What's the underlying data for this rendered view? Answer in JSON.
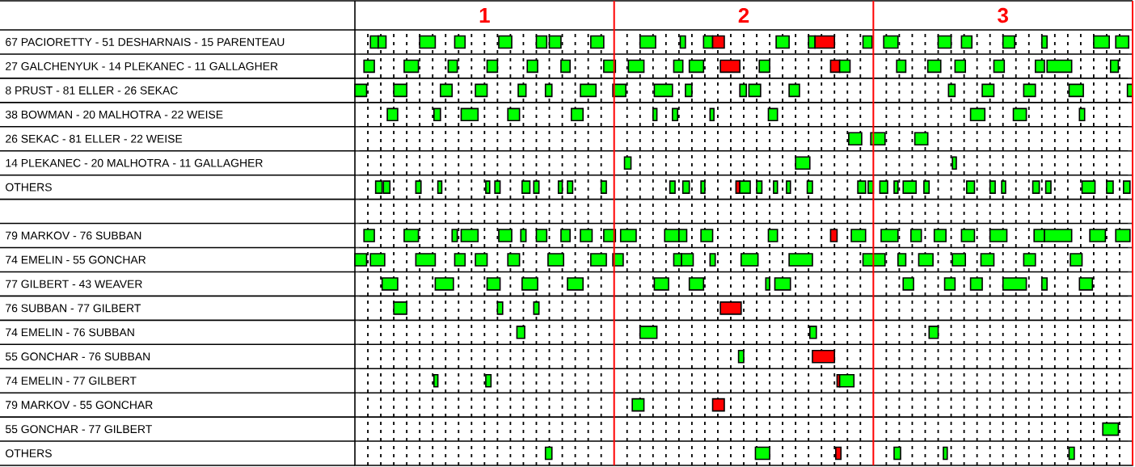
{
  "chart_data": {
    "type": "bar",
    "orientation": "horizontal",
    "grid": true,
    "xlim": [
      0.5,
      3.5
    ],
    "categories": [
      "67 PACIORETTY - 51 DESHARNAIS - 15 PARENTEAU",
      "27 GALCHENYUK - 14 PLEKANEC - 11 GALLAGHER",
      "8 PRUST - 81 ELLER - 26 SEKAC",
      "38 BOWMAN - 20 MALHOTRA - 22 WEISE",
      "26 SEKAC - 81 ELLER - 22 WEISE",
      "14 PLEKANEC - 20 MALHOTRA - 11 GALLAGHER",
      "OTHERS",
      null,
      "79 MARKOV - 76 SUBBAN",
      "74 EMELIN - 55 GONCHAR",
      "77 GILBERT - 43 WEAVER",
      "76 SUBBAN - 77 GILBERT",
      "74 EMELIN - 76 SUBBAN",
      "55 GONCHAR - 76 SUBBAN",
      "74 EMELIN - 77 GILBERT",
      "79 MARKOV - 55 GONCHAR",
      "55 GONCHAR - 77 GILBERT",
      "OTHERS"
    ],
    "xticks": [
      {
        "value": 0.55,
        "label": null
      },
      {
        "value": 0.6,
        "label": null
      },
      {
        "value": 0.65,
        "label": null
      },
      {
        "value": 0.7,
        "label": null
      },
      {
        "value": 0.75,
        "label": null
      },
      {
        "value": 0.8,
        "label": null
      },
      {
        "value": 0.85,
        "label": null
      },
      {
        "value": 0.9,
        "label": null
      },
      {
        "value": 0.95,
        "label": null
      },
      1,
      {
        "value": 1.05,
        "label": null
      },
      {
        "value": 1.1,
        "label": null
      },
      {
        "value": 1.15,
        "label": null
      },
      {
        "value": 1.2,
        "label": null
      },
      {
        "value": 1.25,
        "label": null
      },
      {
        "value": 1.3,
        "label": null
      },
      {
        "value": 1.35,
        "label": null
      },
      {
        "value": 1.4,
        "label": null
      },
      {
        "value": 1.45,
        "label": null
      },
      {
        "value": 1.55,
        "label": null
      },
      {
        "value": 1.6,
        "label": null
      },
      {
        "value": 1.65,
        "label": null
      },
      {
        "value": 1.7,
        "label": null
      },
      {
        "value": 1.75,
        "label": null
      },
      {
        "value": 1.8,
        "label": null
      },
      {
        "value": 1.85,
        "label": null
      },
      {
        "value": 1.9,
        "label": null
      },
      {
        "value": 1.95,
        "label": null
      },
      2,
      {
        "value": 2.05,
        "label": null
      },
      {
        "value": 2.1,
        "label": null
      },
      {
        "value": 2.15,
        "label": null
      },
      {
        "value": 2.2,
        "label": null
      },
      {
        "value": 2.25,
        "label": null
      },
      {
        "value": 2.3,
        "label": null
      },
      {
        "value": 2.35,
        "label": null
      },
      {
        "value": 2.4,
        "label": null
      },
      {
        "value": 2.45,
        "label": null
      },
      {
        "value": 2.55,
        "label": null
      },
      {
        "value": 2.6,
        "label": null
      },
      {
        "value": 2.65,
        "label": null
      },
      {
        "value": 2.7,
        "label": null
      },
      {
        "value": 2.75,
        "label": null
      },
      {
        "value": 2.8,
        "label": null
      },
      {
        "value": 2.85,
        "label": null
      },
      {
        "value": 2.9,
        "label": null
      },
      {
        "value": 2.95,
        "label": null
      },
      3,
      {
        "value": 3.05,
        "label": null
      },
      {
        "value": 3.1,
        "label": null
      },
      {
        "value": 3.15,
        "label": null
      },
      {
        "value": 3.2,
        "label": null
      },
      {
        "value": 3.25,
        "label": null
      },
      {
        "value": 3.3,
        "label": null
      },
      {
        "value": 3.35,
        "label": null
      },
      {
        "value": 3.4,
        "label": null
      },
      {
        "value": 3.45,
        "label": null
      }
    ],
    "ref_lines": [
      {
        "axis": "x",
        "value": 1.5,
        "color": "#ff0000"
      },
      {
        "axis": "x",
        "value": 2.5,
        "color": "#ff0000"
      },
      {
        "axis": "x",
        "value": 3.5,
        "color": "#ff0000"
      }
    ],
    "series": [
      {
        "color": "#00ff00",
        "base": [
          0.56,
          0.535,
          0.5,
          0.625,
          2.405,
          1.54,
          0.58,
          null,
          0.535,
          0.5,
          0.605,
          0.65,
          1.125,
          1.98,
          0.805,
          1.57,
          3.385,
          1.235
        ],
        "values": [
          0.03,
          0.04,
          0.045,
          0.04,
          0.05,
          0.025,
          0.025,
          null,
          0.04,
          0.045,
          0.06,
          0.05,
          0.03,
          0.02,
          0.015,
          0.045,
          0.06,
          0.025
        ]
      },
      {
        "color": "#00ff00",
        "colors": [
          null,
          null,
          null,
          null,
          null,
          null,
          null,
          null,
          null,
          null,
          null,
          null,
          null,
          "#ff0000",
          null,
          "#ff0000",
          null,
          null
        ],
        "base": [
          0.59,
          0.69,
          0.65,
          0.805,
          2.49,
          2.2,
          0.61,
          null,
          0.69,
          0.56,
          0.81,
          1.05,
          1.6,
          2.265,
          1.005,
          1.88,
          null,
          2.045
        ],
        "values": [
          0.03,
          0.055,
          0.05,
          0.025,
          0.055,
          0.055,
          0.025,
          null,
          0.055,
          0.055,
          0.07,
          0.02,
          0.065,
          0.085,
          0.02,
          0.045,
          null,
          0.055
        ]
      },
      {
        "color": "#00ff00",
        "colors": [
          null,
          null,
          null,
          null,
          null,
          null,
          null,
          null,
          null,
          null,
          null,
          null,
          null,
          null,
          "#ff0000",
          null,
          null,
          "#ff0000"
        ],
        "base": [
          0.75,
          0.86,
          0.83,
          0.91,
          2.66,
          2.805,
          0.735,
          null,
          0.875,
          0.735,
          1.01,
          1.19,
          2.255,
          null,
          2.36,
          null,
          null,
          2.355
        ],
        "values": [
          0.06,
          0.035,
          0.045,
          0.065,
          0.05,
          0.015,
          0.02,
          null,
          0.02,
          0.075,
          0.05,
          0.02,
          0.025,
          null,
          0.01,
          null,
          null,
          0.02
        ]
      },
      {
        "color": "#00ff00",
        "colors": [
          null,
          null,
          null,
          null,
          null,
          null,
          null,
          null,
          null,
          null,
          null,
          "#ff0000",
          null,
          null,
          null,
          null,
          null,
          null
        ],
        "base": [
          0.885,
          1.01,
          0.965,
          1.09,
          null,
          null,
          0.82,
          null,
          0.91,
          0.885,
          1.145,
          1.91,
          2.715,
          null,
          2.37,
          null,
          null,
          2.58
        ],
        "values": [
          0.04,
          0.04,
          0.045,
          0.045,
          null,
          null,
          0.015,
          null,
          0.065,
          0.04,
          0.06,
          0.08,
          0.035,
          null,
          0.055,
          null,
          null,
          0.025
        ]
      },
      {
        "color": "#00ff00",
        "base": [
          1.055,
          1.165,
          1.13,
          1.335,
          null,
          null,
          1.005,
          null,
          1.055,
          0.965,
          1.32,
          null,
          null,
          null,
          null,
          null,
          null,
          2.77
        ],
        "values": [
          0.05,
          0.04,
          0.03,
          0.045,
          null,
          null,
          0.015,
          null,
          0.05,
          0.045,
          0.06,
          null,
          null,
          null,
          null,
          null,
          null,
          0.015
        ]
      },
      {
        "color": "#00ff00",
        "base": [
          1.2,
          1.295,
          1.235,
          1.65,
          null,
          null,
          1.04,
          null,
          1.14,
          1.09,
          1.655,
          null,
          null,
          null,
          null,
          null,
          null,
          3.255
        ],
        "values": [
          0.04,
          0.035,
          0.025,
          0.015,
          null,
          null,
          0.02,
          null,
          0.02,
          0.045,
          0.055,
          null,
          null,
          null,
          null,
          null,
          null,
          0.02
        ]
      },
      {
        "color": "#00ff00",
        "base": [
          1.25,
          1.46,
          1.37,
          1.725,
          null,
          null,
          1.145,
          null,
          1.2,
          1.245,
          1.79,
          null,
          null,
          null,
          null,
          null,
          null,
          null
        ],
        "values": [
          0.045,
          0.045,
          0.06,
          0.02,
          null,
          null,
          0.03,
          null,
          0.04,
          0.06,
          0.055,
          null,
          null,
          null,
          null,
          null,
          null,
          null
        ]
      },
      {
        "color": "#00ff00",
        "base": [
          1.41,
          1.555,
          1.495,
          1.87,
          null,
          null,
          1.19,
          null,
          1.295,
          1.41,
          2.085,
          null,
          null,
          null,
          null,
          null,
          null,
          null
        ],
        "values": [
          0.05,
          0.06,
          0.05,
          0.015,
          null,
          null,
          0.02,
          null,
          0.035,
          0.06,
          0.015,
          null,
          null,
          null,
          null,
          null,
          null,
          null
        ]
      },
      {
        "color": "#00ff00",
        "base": [
          1.6,
          1.73,
          1.655,
          2.095,
          null,
          null,
          1.285,
          null,
          1.37,
          1.495,
          2.12,
          null,
          null,
          null,
          null,
          null,
          null,
          null
        ],
        "values": [
          0.06,
          0.035,
          0.07,
          0.035,
          null,
          null,
          0.015,
          null,
          0.045,
          0.04,
          0.06,
          null,
          null,
          null,
          null,
          null,
          null,
          null
        ]
      },
      {
        "color": "#00ff00",
        "base": [
          1.755,
          1.79,
          1.775,
          2.875,
          null,
          null,
          1.32,
          null,
          1.46,
          1.73,
          2.615,
          null,
          null,
          null,
          null,
          null,
          null,
          null
        ],
        "values": [
          0.02,
          0.055,
          0.025,
          0.055,
          null,
          null,
          0.02,
          null,
          0.045,
          0.03,
          0.04,
          null,
          null,
          null,
          null,
          null,
          null,
          null
        ]
      },
      {
        "color": "#00ff00",
        "colors": [
          null,
          "#ff0000",
          null,
          null,
          null,
          null,
          null,
          null,
          null,
          null,
          null,
          null,
          null,
          null,
          null,
          null,
          null,
          null
        ],
        "base": [
          1.845,
          1.91,
          1.985,
          3.04,
          null,
          null,
          1.45,
          null,
          1.525,
          1.76,
          2.775,
          null,
          null,
          null,
          null,
          null,
          null,
          null
        ],
        "values": [
          0.035,
          0.075,
          0.025,
          0.05,
          null,
          null,
          0.02,
          null,
          0.06,
          0.045,
          0.04,
          null,
          null,
          null,
          null,
          null,
          null,
          null
        ]
      },
      {
        "color": "#00ff00",
        "colors": [
          "#ff0000",
          null,
          null,
          null,
          null,
          null,
          null,
          null,
          null,
          null,
          null,
          null,
          null,
          null,
          null,
          null,
          null,
          null
        ],
        "base": [
          1.88,
          2.06,
          2.02,
          3.295,
          null,
          null,
          1.715,
          null,
          1.695,
          1.87,
          2.875,
          null,
          null,
          null,
          null,
          null,
          null,
          null
        ],
        "values": [
          0.045,
          0.04,
          0.045,
          0.02,
          null,
          null,
          0.02,
          null,
          0.055,
          0.02,
          0.045,
          null,
          null,
          null,
          null,
          null,
          null,
          null
        ]
      },
      {
        "color": "#00ff00",
        "colors": [
          null,
          "#ff0000",
          null,
          null,
          null,
          null,
          null,
          null,
          null,
          null,
          null,
          null,
          null,
          null,
          null,
          null,
          null,
          null
        ],
        "base": [
          2.125,
          2.335,
          2.175,
          null,
          null,
          null,
          1.765,
          null,
          1.75,
          1.99,
          3.0,
          null,
          null,
          null,
          null,
          null,
          null,
          null
        ],
        "values": [
          0.05,
          0.035,
          0.04,
          null,
          null,
          null,
          0.025,
          null,
          0.03,
          0.065,
          0.09,
          null,
          null,
          null,
          null,
          null,
          null,
          null
        ]
      },
      {
        "color": "#00ff00",
        "base": [
          2.25,
          2.37,
          2.79,
          null,
          null,
          null,
          1.835,
          null,
          1.835,
          2.175,
          3.15,
          null,
          null,
          null,
          null,
          null,
          null,
          null
        ],
        "values": [
          0.025,
          0.04,
          0.025,
          null,
          null,
          null,
          0.015,
          null,
          0.045,
          0.09,
          0.02,
          null,
          null,
          null,
          null,
          null,
          null,
          null
        ]
      },
      {
        "color": "#00ff00",
        "colors": [
          "#ff0000",
          null,
          null,
          null,
          null,
          null,
          "#ff0000",
          null,
          null,
          null,
          null,
          null,
          null,
          null,
          null,
          null,
          null,
          null
        ],
        "base": [
          2.275,
          2.59,
          2.92,
          null,
          null,
          null,
          1.97,
          null,
          2.095,
          2.46,
          3.295,
          null,
          null,
          null,
          null,
          null,
          null,
          null
        ],
        "values": [
          0.075,
          0.035,
          0.045,
          null,
          null,
          null,
          0.015,
          null,
          0.035,
          0.085,
          0.05,
          null,
          null,
          null,
          null,
          null,
          null,
          null
        ]
      },
      {
        "color": "#00ff00",
        "colors": [
          null,
          null,
          null,
          null,
          null,
          null,
          null,
          null,
          "#ff0000",
          null,
          null,
          null,
          null,
          null,
          null,
          null,
          null,
          null
        ],
        "base": [
          2.46,
          2.71,
          3.08,
          null,
          null,
          null,
          1.985,
          null,
          2.335,
          2.595,
          null,
          null,
          null,
          null,
          null,
          null,
          null,
          null
        ],
        "values": [
          0.035,
          0.05,
          0.045,
          null,
          null,
          null,
          0.04,
          null,
          0.025,
          0.03,
          null,
          null,
          null,
          null,
          null,
          null,
          null,
          null
        ]
      },
      {
        "color": "#00ff00",
        "base": [
          2.54,
          2.815,
          3.255,
          null,
          null,
          null,
          2.05,
          null,
          2.415,
          2.675,
          null,
          null,
          null,
          null,
          null,
          null,
          null,
          null
        ],
        "values": [
          0.055,
          0.04,
          0.055,
          null,
          null,
          null,
          0.02,
          null,
          0.055,
          0.055,
          null,
          null,
          null,
          null,
          null,
          null,
          null,
          null
        ]
      },
      {
        "color": "#00ff00",
        "base": [
          2.75,
          2.965,
          3.48,
          null,
          null,
          null,
          2.115,
          null,
          2.53,
          2.805,
          null,
          null,
          null,
          null,
          null,
          null,
          null,
          null
        ],
        "values": [
          0.05,
          0.04,
          0.02,
          null,
          null,
          null,
          0.015,
          null,
          0.065,
          0.05,
          null,
          null,
          null,
          null,
          null,
          null,
          null,
          null
        ]
      },
      {
        "color": "#00ff00",
        "base": [
          2.84,
          3.125,
          null,
          null,
          null,
          null,
          2.165,
          null,
          2.645,
          2.915,
          null,
          null,
          null,
          null,
          null,
          null,
          null,
          null
        ],
        "values": [
          0.04,
          0.035,
          null,
          null,
          null,
          null,
          0.015,
          null,
          0.04,
          0.05,
          null,
          null,
          null,
          null,
          null,
          null,
          null,
          null
        ]
      },
      {
        "color": "#00ff00",
        "base": [
          3.0,
          3.17,
          null,
          null,
          null,
          null,
          2.245,
          null,
          2.735,
          3.08,
          null,
          null,
          null,
          null,
          null,
          null,
          null,
          null
        ],
        "values": [
          0.045,
          0.095,
          null,
          null,
          null,
          null,
          0.02,
          null,
          0.045,
          0.045,
          null,
          null,
          null,
          null,
          null,
          null,
          null,
          null
        ]
      },
      {
        "color": "#00ff00",
        "base": [
          3.15,
          3.415,
          null,
          null,
          null,
          null,
          2.44,
          null,
          2.84,
          3.26,
          null,
          null,
          null,
          null,
          null,
          null,
          null,
          null
        ],
        "values": [
          0.02,
          0.03,
          null,
          null,
          null,
          null,
          0.03,
          null,
          0.05,
          0.045,
          null,
          null,
          null,
          null,
          null,
          null,
          null,
          null
        ]
      },
      {
        "color": "#00ff00",
        "base": [
          3.35,
          null,
          null,
          null,
          null,
          null,
          2.48,
          null,
          2.95,
          null,
          null,
          null,
          null,
          null,
          null,
          null,
          null,
          null
        ],
        "values": [
          0.06,
          null,
          null,
          null,
          null,
          null,
          0.02,
          null,
          0.065,
          null,
          null,
          null,
          null,
          null,
          null,
          null,
          null,
          null
        ]
      },
      {
        "color": "#00ff00",
        "base": [
          3.435,
          null,
          null,
          null,
          null,
          null,
          2.525,
          null,
          3.12,
          null,
          null,
          null,
          null,
          null,
          null,
          null,
          null,
          null
        ],
        "values": [
          0.05,
          null,
          null,
          null,
          null,
          null,
          0.03,
          null,
          0.04,
          null,
          null,
          null,
          null,
          null,
          null,
          null,
          null,
          null
        ]
      },
      {
        "color": "#00ff00",
        "base": [
          null,
          null,
          null,
          null,
          null,
          null,
          2.58,
          null,
          3.16,
          null,
          null,
          null,
          null,
          null,
          null,
          null,
          null,
          null
        ],
        "values": [
          null,
          null,
          null,
          null,
          null,
          null,
          0.015,
          null,
          0.105,
          null,
          null,
          null,
          null,
          null,
          null,
          null,
          null,
          null
        ]
      },
      {
        "color": "#00ff00",
        "base": [
          null,
          null,
          null,
          null,
          null,
          null,
          2.615,
          null,
          3.335,
          null,
          null,
          null,
          null,
          null,
          null,
          null,
          null,
          null
        ],
        "values": [
          null,
          null,
          null,
          null,
          null,
          null,
          0.05,
          null,
          0.06,
          null,
          null,
          null,
          null,
          null,
          null,
          null,
          null,
          null
        ]
      },
      {
        "color": "#00ff00",
        "base": [
          null,
          null,
          null,
          null,
          null,
          null,
          2.695,
          null,
          3.435,
          null,
          null,
          null,
          null,
          null,
          null,
          null,
          null,
          null
        ],
        "values": [
          null,
          null,
          null,
          null,
          null,
          null,
          0.02,
          null,
          0.055,
          null,
          null,
          null,
          null,
          null,
          null,
          null,
          null,
          null
        ]
      },
      {
        "color": "#00ff00",
        "base": [
          null,
          null,
          null,
          null,
          null,
          null,
          2.86,
          null,
          null,
          null,
          null,
          null,
          null,
          null,
          null,
          null,
          null,
          null
        ],
        "values": [
          null,
          null,
          null,
          null,
          null,
          null,
          0.03,
          null,
          null,
          null,
          null,
          null,
          null,
          null,
          null,
          null,
          null,
          null
        ]
      },
      {
        "color": "#00ff00",
        "base": [
          null,
          null,
          null,
          null,
          null,
          null,
          2.95,
          null,
          null,
          null,
          null,
          null,
          null,
          null,
          null,
          null,
          null,
          null
        ],
        "values": [
          null,
          null,
          null,
          null,
          null,
          null,
          0.02,
          null,
          null,
          null,
          null,
          null,
          null,
          null,
          null,
          null,
          null,
          null
        ]
      },
      {
        "color": "#00ff00",
        "base": [
          null,
          null,
          null,
          null,
          null,
          null,
          2.995,
          null,
          null,
          null,
          null,
          null,
          null,
          null,
          null,
          null,
          null,
          null
        ],
        "values": [
          null,
          null,
          null,
          null,
          null,
          null,
          0.015,
          null,
          null,
          null,
          null,
          null,
          null,
          null,
          null,
          null,
          null,
          null
        ]
      },
      {
        "color": "#00ff00",
        "base": [
          null,
          null,
          null,
          null,
          null,
          null,
          3.115,
          null,
          null,
          null,
          null,
          null,
          null,
          null,
          null,
          null,
          null,
          null
        ],
        "values": [
          null,
          null,
          null,
          null,
          null,
          null,
          0.025,
          null,
          null,
          null,
          null,
          null,
          null,
          null,
          null,
          null,
          null,
          null
        ]
      },
      {
        "color": "#00ff00",
        "base": [
          null,
          null,
          null,
          null,
          null,
          null,
          3.165,
          null,
          null,
          null,
          null,
          null,
          null,
          null,
          null,
          null,
          null,
          null
        ],
        "values": [
          null,
          null,
          null,
          null,
          null,
          null,
          0.02,
          null,
          null,
          null,
          null,
          null,
          null,
          null,
          null,
          null,
          null,
          null
        ]
      },
      {
        "color": "#00ff00",
        "base": [
          null,
          null,
          null,
          null,
          null,
          null,
          3.305,
          null,
          null,
          null,
          null,
          null,
          null,
          null,
          null,
          null,
          null,
          null
        ],
        "values": [
          null,
          null,
          null,
          null,
          null,
          null,
          0.05,
          null,
          null,
          null,
          null,
          null,
          null,
          null,
          null,
          null,
          null,
          null
        ]
      },
      {
        "color": "#00ff00",
        "base": [
          null,
          null,
          null,
          null,
          null,
          null,
          3.4,
          null,
          null,
          null,
          null,
          null,
          null,
          null,
          null,
          null,
          null,
          null
        ],
        "values": [
          null,
          null,
          null,
          null,
          null,
          null,
          0.025,
          null,
          null,
          null,
          null,
          null,
          null,
          null,
          null,
          null,
          null,
          null
        ]
      },
      {
        "color": "#00ff00",
        "base": [
          null,
          null,
          null,
          null,
          null,
          null,
          3.465,
          null,
          null,
          null,
          null,
          null,
          null,
          null,
          null,
          null,
          null,
          null
        ],
        "values": [
          null,
          null,
          null,
          null,
          null,
          null,
          0.025,
          null,
          null,
          null,
          null,
          null,
          null,
          null,
          null,
          null,
          null,
          null
        ]
      }
    ]
  }
}
